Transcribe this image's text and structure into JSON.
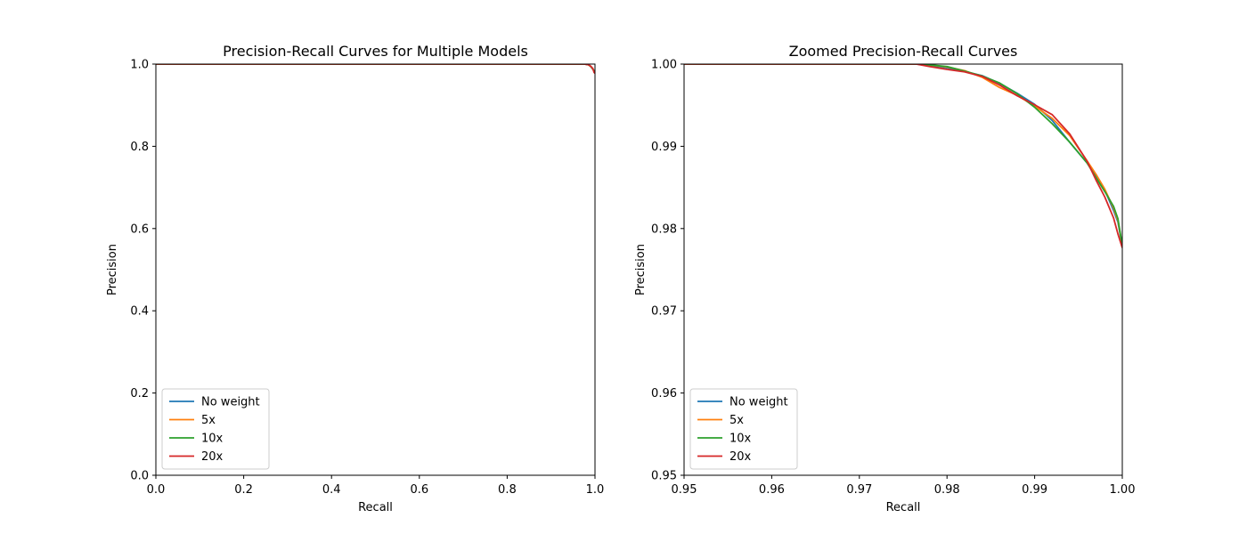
{
  "colors": {
    "no_weight": "#1f77b4",
    "x5": "#ff7f0e",
    "x10": "#2ca02c",
    "x20": "#d62728"
  },
  "chart_data": [
    {
      "type": "line",
      "title": "Precision-Recall Curves for Multiple Models",
      "xlabel": "Recall",
      "ylabel": "Precision",
      "xlim": [
        0.0,
        1.0
      ],
      "ylim": [
        0.0,
        1.0
      ],
      "xticks": [
        0.0,
        0.2,
        0.4,
        0.6,
        0.8,
        1.0
      ],
      "xtick_labels": [
        "0.0",
        "0.2",
        "0.4",
        "0.6",
        "0.8",
        "1.0"
      ],
      "yticks": [
        0.0,
        0.2,
        0.4,
        0.6,
        0.8,
        1.0
      ],
      "ytick_labels": [
        "0.0",
        "0.2",
        "0.4",
        "0.6",
        "0.8",
        "1.0"
      ],
      "grid": false,
      "legend_position": "lower-left",
      "series": [
        {
          "name": "No weight",
          "color": "#1f77b4",
          "x": [
            0.0,
            0.976,
            0.98,
            0.985,
            0.99,
            0.995,
            0.998,
            1.0
          ],
          "y": [
            1.0,
            1.0,
            0.9995,
            0.9985,
            0.9945,
            0.9875,
            0.9825,
            0.9775
          ]
        },
        {
          "name": "5x",
          "color": "#ff7f0e",
          "x": [
            0.0,
            0.976,
            0.98,
            0.985,
            0.99,
            0.995,
            0.998,
            1.0
          ],
          "y": [
            1.0,
            1.0,
            0.9996,
            0.9982,
            0.9947,
            0.988,
            0.9825,
            0.9775
          ]
        },
        {
          "name": "10x",
          "color": "#2ca02c",
          "x": [
            0.0,
            0.976,
            0.98,
            0.985,
            0.99,
            0.995,
            0.998,
            1.0
          ],
          "y": [
            1.0,
            1.0,
            0.9995,
            0.9983,
            0.9946,
            0.9885,
            0.9835,
            0.978
          ]
        },
        {
          "name": "20x",
          "color": "#d62728",
          "x": [
            0.0,
            0.976,
            0.98,
            0.985,
            0.99,
            0.995,
            0.998,
            1.0
          ],
          "y": [
            1.0,
            1.0,
            0.9992,
            0.9984,
            0.995,
            0.9895,
            0.9795,
            0.9775
          ]
        }
      ]
    },
    {
      "type": "line",
      "title": "Zoomed Precision-Recall Curves",
      "xlabel": "Recall",
      "ylabel": "Precision",
      "xlim": [
        0.95,
        1.0
      ],
      "ylim": [
        0.95,
        1.0
      ],
      "xticks": [
        0.95,
        0.96,
        0.97,
        0.98,
        0.99,
        1.0
      ],
      "xtick_labels": [
        "0.95",
        "0.96",
        "0.97",
        "0.98",
        "0.99",
        "1.00"
      ],
      "yticks": [
        0.95,
        0.96,
        0.97,
        0.98,
        0.99,
        1.0
      ],
      "ytick_labels": [
        "0.95",
        "0.96",
        "0.97",
        "0.98",
        "0.99",
        "1.00"
      ],
      "grid": false,
      "legend_position": "lower-left",
      "series": [
        {
          "name": "No weight",
          "color": "#1f77b4",
          "x": [
            0.95,
            0.9765,
            0.978,
            0.98,
            0.982,
            0.984,
            0.986,
            0.988,
            0.99,
            0.992,
            0.994,
            0.996,
            0.997,
            0.998,
            0.999,
            0.9995,
            1.0
          ],
          "y": [
            1.0,
            1.0,
            0.99985,
            0.99955,
            0.9991,
            0.9986,
            0.99765,
            0.99645,
            0.9951,
            0.99315,
            0.9905,
            0.98795,
            0.9864,
            0.9847,
            0.9822,
            0.9808,
            0.9778
          ]
        },
        {
          "name": "5x",
          "color": "#ff7f0e",
          "x": [
            0.95,
            0.9765,
            0.978,
            0.98,
            0.982,
            0.984,
            0.986,
            0.988,
            0.99,
            0.992,
            0.994,
            0.996,
            0.997,
            0.998,
            0.999,
            0.9995,
            1.0
          ],
          "y": [
            1.0,
            1.0,
            0.9999,
            0.99965,
            0.9992,
            0.9984,
            0.99715,
            0.9962,
            0.9949,
            0.9934,
            0.9913,
            0.9882,
            0.9866,
            0.9848,
            0.9825,
            0.981,
            0.9779
          ]
        },
        {
          "name": "10x",
          "color": "#2ca02c",
          "x": [
            0.95,
            0.9765,
            0.978,
            0.98,
            0.982,
            0.984,
            0.986,
            0.988,
            0.99,
            0.992,
            0.994,
            0.996,
            0.997,
            0.998,
            0.999,
            0.9995,
            1.0
          ],
          "y": [
            1.0,
            1.0,
            0.9999,
            0.9997,
            0.99915,
            0.99855,
            0.9977,
            0.9964,
            0.99475,
            0.99275,
            0.9905,
            0.98795,
            0.9862,
            0.9845,
            0.9827,
            0.9812,
            0.9779
          ]
        },
        {
          "name": "20x",
          "color": "#d62728",
          "x": [
            0.95,
            0.9765,
            0.978,
            0.98,
            0.982,
            0.984,
            0.986,
            0.988,
            0.99,
            0.992,
            0.994,
            0.996,
            0.997,
            0.998,
            0.999,
            0.9995,
            1.0
          ],
          "y": [
            1.0,
            1.0,
            0.9997,
            0.99935,
            0.99905,
            0.9985,
            0.99745,
            0.99615,
            0.99505,
            0.99385,
            0.9915,
            0.98815,
            0.9859,
            0.98385,
            0.9813,
            0.97935,
            0.97765
          ]
        }
      ]
    }
  ]
}
